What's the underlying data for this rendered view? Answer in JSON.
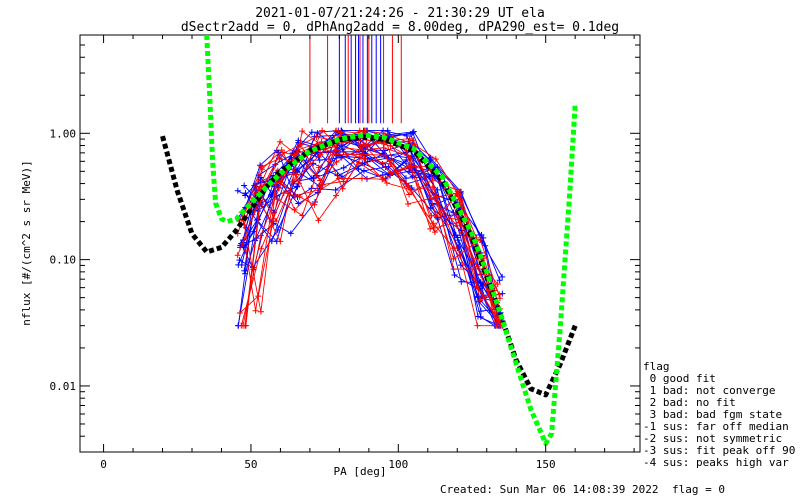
{
  "chart_data": {
    "type": "line",
    "title": "2021-01-07/21:24:26 - 21:30:29 UT ela",
    "subtitle": "dSectr2add = 0, dPhAng2add = 8.00deg, dPA290_est=   0.1deg",
    "xlabel": "PA [deg]",
    "ylabel": "nflux [#/(cm^2 s sr MeV)]",
    "xlim": [
      -8,
      182
    ],
    "ylim": [
      0.003,
      6.0
    ],
    "yscale": "log",
    "x_ticks": [
      0,
      50,
      100,
      150
    ],
    "x_tick_labels": [
      "0",
      "50",
      "100",
      "150"
    ],
    "y_ticks": [
      0.01,
      0.1,
      1.0
    ],
    "y_tick_labels": [
      "0.01",
      "0.10",
      "1.00"
    ],
    "grid": false,
    "legend_position": "right",
    "colors": {
      "blue": "#0000ff",
      "red": "#ff0000",
      "black": "#000000",
      "green": "#00ff00"
    },
    "fit_black": {
      "x": [
        20,
        25,
        30,
        35,
        40,
        45,
        50,
        55,
        60,
        70,
        80,
        88,
        95,
        105,
        115,
        125,
        135,
        140,
        145,
        150,
        155,
        160
      ],
      "y": [
        0.95,
        0.35,
        0.16,
        0.115,
        0.125,
        0.17,
        0.25,
        0.37,
        0.5,
        0.73,
        0.89,
        0.93,
        0.9,
        0.73,
        0.42,
        0.15,
        0.035,
        0.016,
        0.0095,
        0.0085,
        0.015,
        0.03
      ]
    },
    "fit_green": {
      "x": [
        35,
        36,
        37,
        38,
        40,
        42,
        45,
        50,
        55,
        60,
        70,
        80,
        88,
        95,
        105,
        115,
        125,
        130,
        135,
        140,
        145,
        148,
        150,
        152,
        155,
        158,
        160
      ],
      "y": [
        6.0,
        2.0,
        0.6,
        0.28,
        0.21,
        0.2,
        0.21,
        0.28,
        0.37,
        0.48,
        0.72,
        0.9,
        0.97,
        0.93,
        0.76,
        0.45,
        0.16,
        0.08,
        0.035,
        0.015,
        0.0065,
        0.0045,
        0.0035,
        0.0042,
        0.03,
        0.3,
        1.7
      ]
    },
    "series_blue_count": 22,
    "series_red_count": 14,
    "blue_marker_x": [
      47,
      52,
      58,
      65,
      72,
      80,
      88,
      96,
      104,
      112,
      120,
      128,
      134
    ],
    "red_marker_x": [
      47,
      53,
      60,
      66,
      73,
      80,
      88,
      96,
      104,
      112,
      120,
      128,
      134
    ],
    "vertical_lines_blue_x": [
      80,
      82,
      84,
      85.5,
      86.5,
      88,
      89.5,
      91,
      92.5,
      94
    ],
    "vertical_lines_red_x": [
      70,
      76,
      83,
      87,
      90,
      95,
      98,
      101
    ],
    "vertical_lines_top": 6.0,
    "vertical_lines_bottom": 1.2
  },
  "legend": {
    "title": "flag",
    "items": [
      " 0 good fit",
      " 1 bad: not converge",
      " 2 bad: no fit",
      " 3 bad: bad fgm state",
      "-1 sus: far off median",
      "-2 sus: not symmetric",
      "-3 sus: fit peak off 90",
      "-4 sus: peaks high var"
    ]
  },
  "footer": {
    "created": "Created: Sun Mar 06 14:08:39 2022",
    "flag": "flag = 0"
  }
}
